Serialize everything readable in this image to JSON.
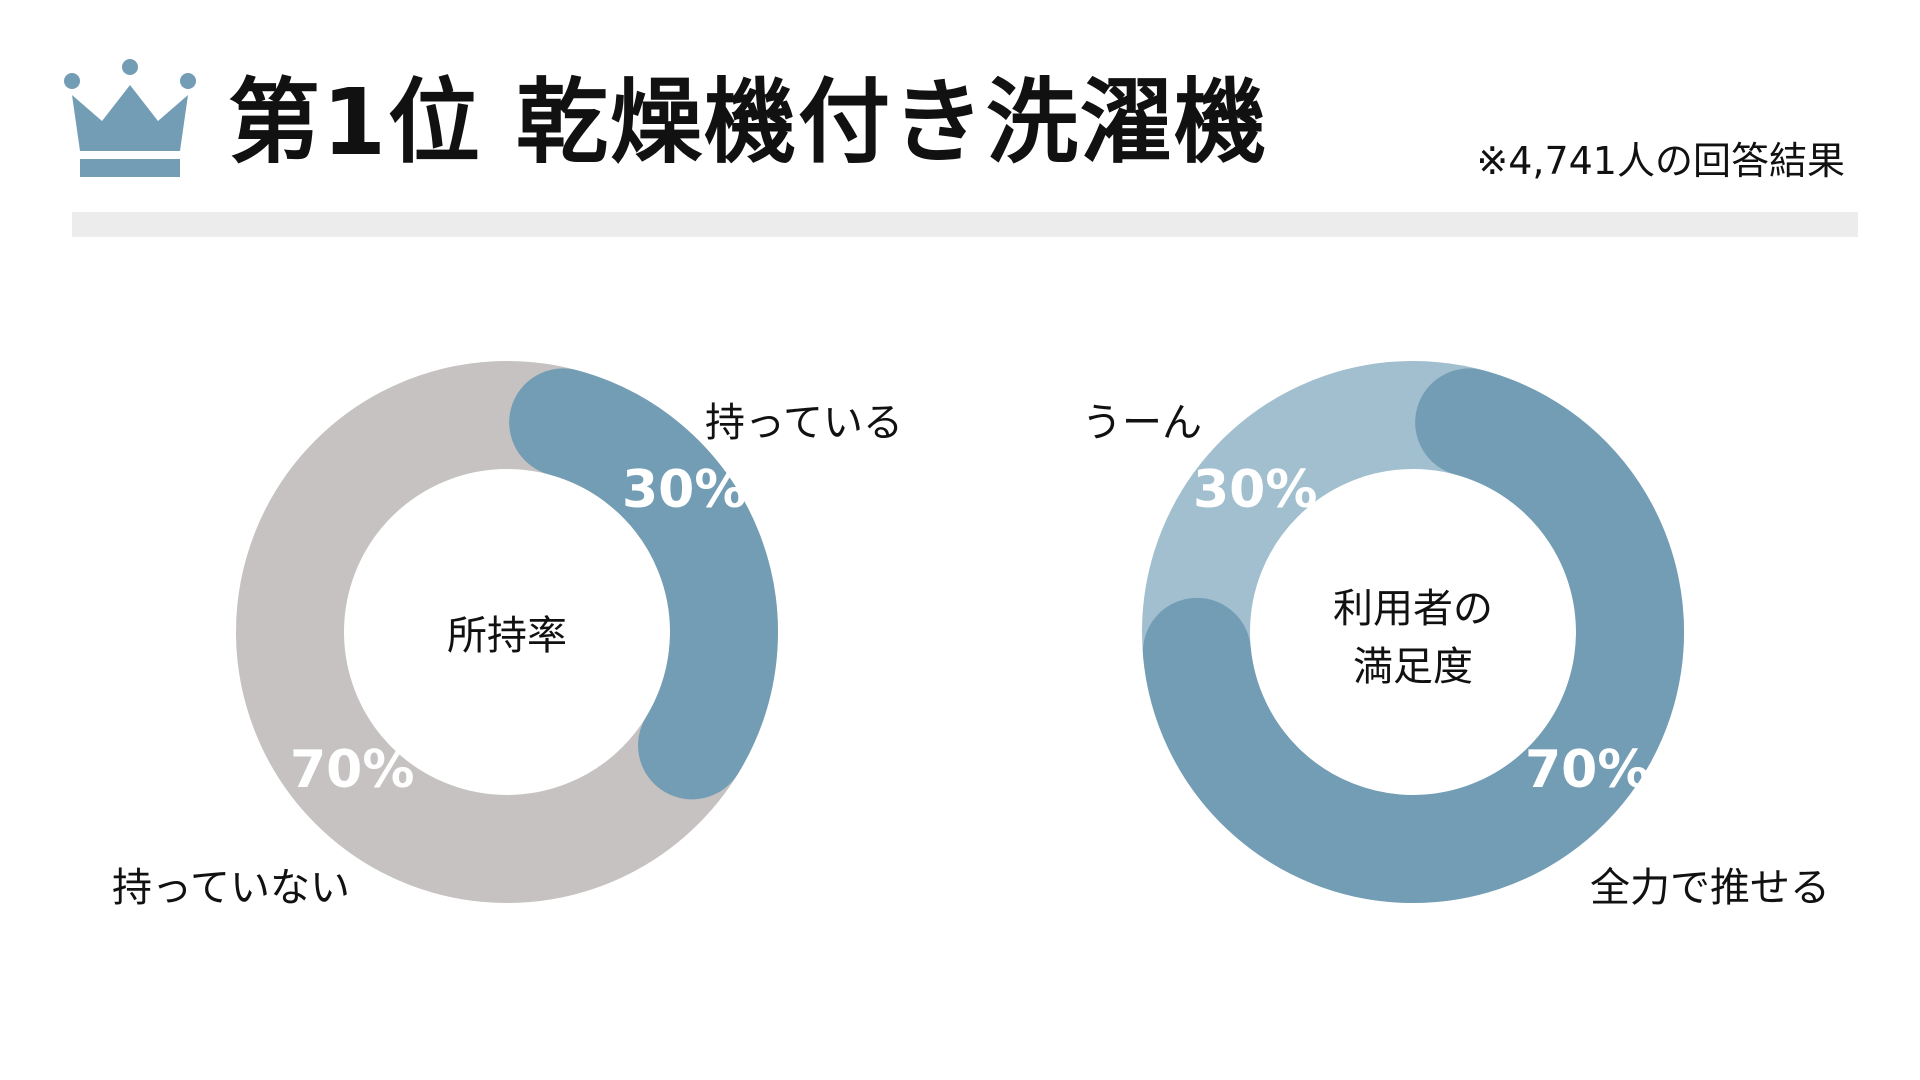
{
  "header": {
    "title": "第1位 乾燥機付き洗濯機",
    "note": "※4,741人の回答結果",
    "icon": "crown-icon"
  },
  "colors": {
    "accent": "#739db4",
    "accent_light": "#a1bfcf",
    "gray": "#c5c2c1",
    "rule": "#ececec"
  },
  "chart_data": [
    {
      "type": "pie",
      "title": "",
      "center_label": "所持率",
      "slices": [
        {
          "label": "持っている",
          "value": 30,
          "value_label": "30%",
          "color": "#739db4"
        },
        {
          "label": "持っていない",
          "value": 70,
          "value_label": "70%",
          "color": "#c5c2c1"
        }
      ]
    },
    {
      "type": "pie",
      "title": "",
      "center_label_lines": [
        "利用者の",
        "満足度"
      ],
      "slices": [
        {
          "label": "全力で推せる",
          "value": 70,
          "value_label": "70%",
          "color": "#739db4"
        },
        {
          "label": "うーん",
          "value": 30,
          "value_label": "30%",
          "color": "#a1bfcf"
        }
      ]
    }
  ]
}
